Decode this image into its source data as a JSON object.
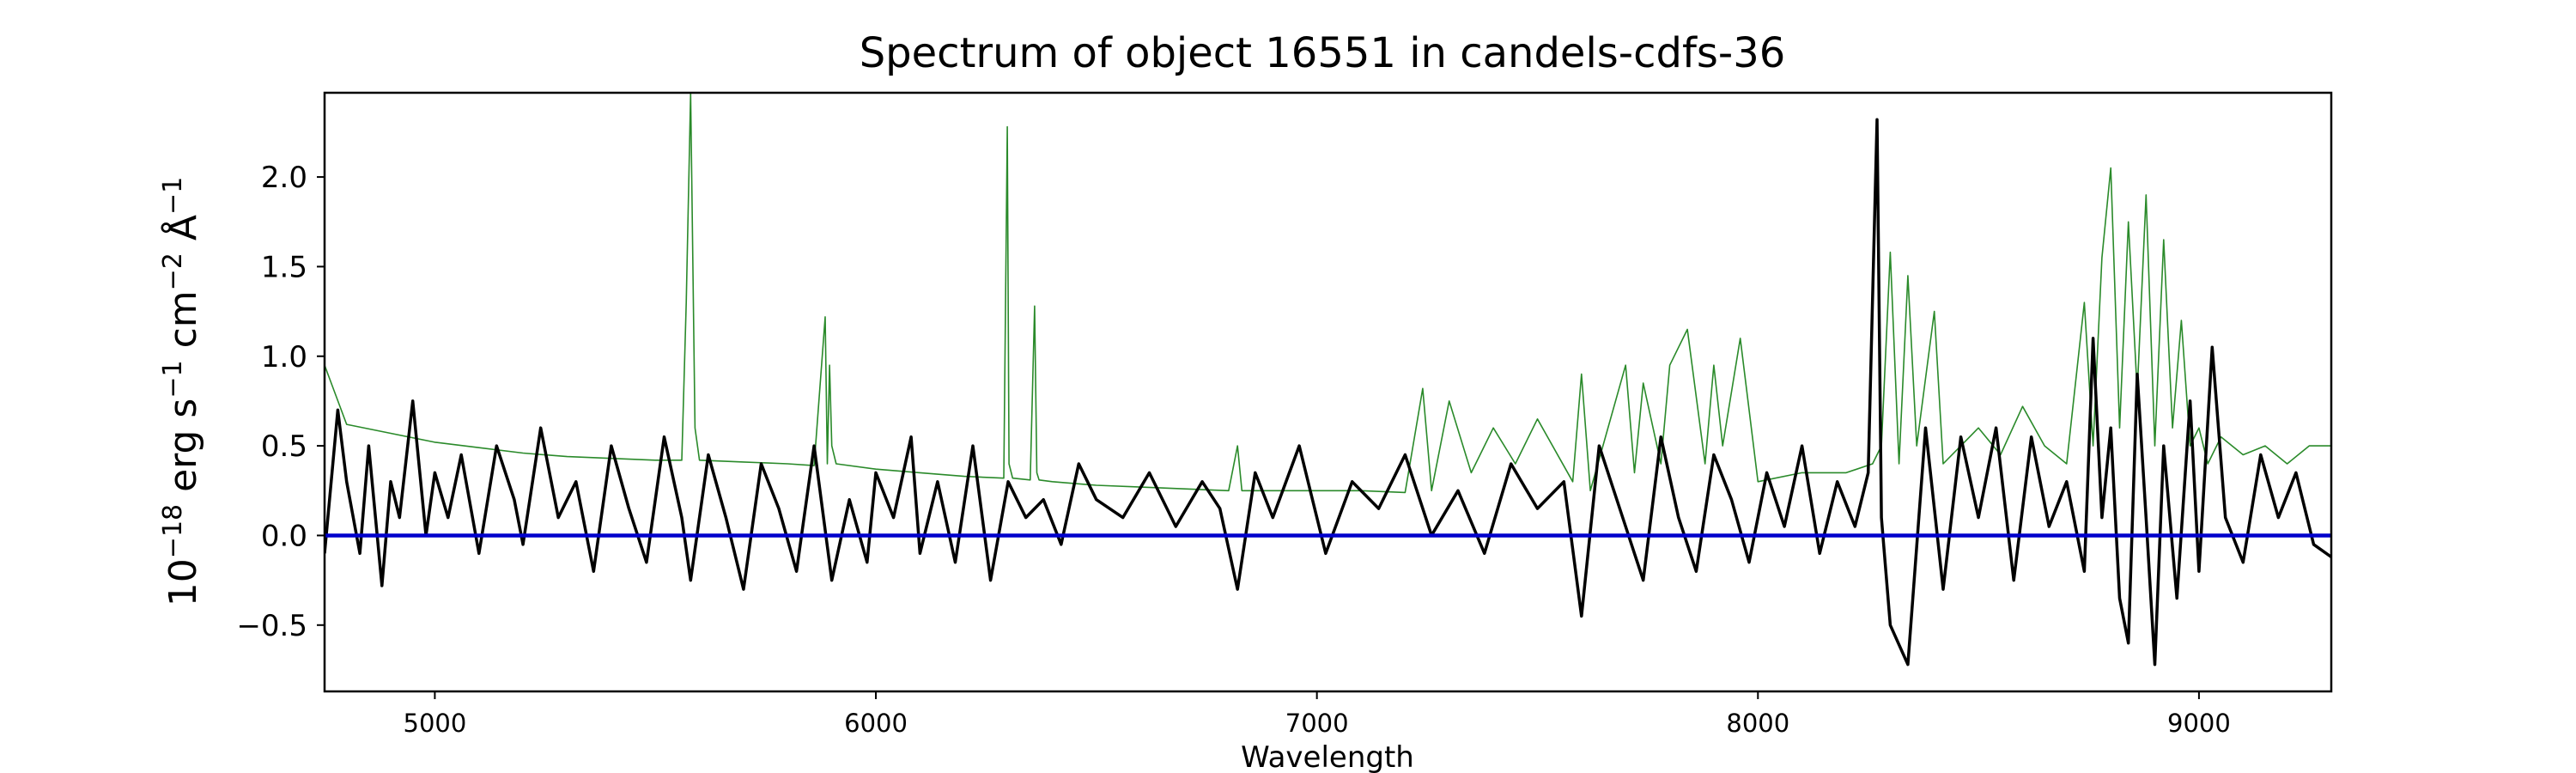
{
  "chart_data": {
    "type": "line",
    "title": "Spectrum of object 16551 in candels-cdfs-36",
    "xlabel": "Wavelength",
    "ylabel_parts": [
      "10",
      "−18",
      " erg s",
      "−1",
      " cm",
      "−2",
      " Å",
      "−1"
    ],
    "xlim": [
      4750,
      9300
    ],
    "ylim": [
      -0.87,
      2.47
    ],
    "xticks": [
      5000,
      6000,
      7000,
      8000,
      9000
    ],
    "xtick_labels": [
      "5000",
      "6000",
      "7000",
      "8000",
      "9000"
    ],
    "yticks": [
      -0.5,
      0.0,
      0.5,
      1.0,
      1.5,
      2.0
    ],
    "ytick_labels": [
      "−0.5",
      "0.0",
      "0.5",
      "1.0",
      "1.5",
      "2.0"
    ],
    "grid": false,
    "legend": "none",
    "colors": {
      "flux": "#000000",
      "error": "#2a8a2a",
      "zero": "#0000cc"
    },
    "series": [
      {
        "key": "flux",
        "x": [
          4750,
          4780,
          4800,
          4830,
          4850,
          4880,
          4900,
          4920,
          4950,
          4980,
          5000,
          5030,
          5060,
          5100,
          5140,
          5180,
          5200,
          5240,
          5280,
          5320,
          5360,
          5400,
          5440,
          5480,
          5520,
          5560,
          5580,
          5620,
          5660,
          5700,
          5740,
          5780,
          5820,
          5860,
          5900,
          5940,
          5980,
          6000,
          6040,
          6080,
          6100,
          6140,
          6180,
          6220,
          6260,
          6300,
          6340,
          6380,
          6420,
          6460,
          6500,
          6560,
          6620,
          6680,
          6740,
          6780,
          6820,
          6860,
          6900,
          6960,
          7020,
          7080,
          7140,
          7200,
          7260,
          7320,
          7380,
          7440,
          7500,
          7560,
          7600,
          7640,
          7700,
          7740,
          7780,
          7820,
          7860,
          7900,
          7940,
          7980,
          8020,
          8060,
          8100,
          8140,
          8180,
          8220,
          8250,
          8270,
          8280,
          8300,
          8340,
          8380,
          8420,
          8460,
          8500,
          8540,
          8580,
          8620,
          8660,
          8700,
          8740,
          8760,
          8780,
          8800,
          8820,
          8840,
          8860,
          8880,
          8900,
          8920,
          8950,
          8980,
          9000,
          9030,
          9060,
          9100,
          9140,
          9180,
          9220,
          9260,
          9300
        ],
        "y": [
          -0.1,
          0.7,
          0.3,
          -0.1,
          0.5,
          -0.28,
          0.3,
          0.1,
          0.75,
          0.0,
          0.35,
          0.1,
          0.45,
          -0.1,
          0.5,
          0.2,
          -0.05,
          0.6,
          0.1,
          0.3,
          -0.2,
          0.5,
          0.15,
          -0.15,
          0.55,
          0.1,
          -0.25,
          0.45,
          0.1,
          -0.3,
          0.4,
          0.15,
          -0.2,
          0.5,
          -0.25,
          0.2,
          -0.15,
          0.35,
          0.1,
          0.55,
          -0.1,
          0.3,
          -0.15,
          0.5,
          -0.25,
          0.3,
          0.1,
          0.2,
          -0.05,
          0.4,
          0.2,
          0.1,
          0.35,
          0.05,
          0.3,
          0.15,
          -0.3,
          0.35,
          0.1,
          0.5,
          -0.1,
          0.3,
          0.15,
          0.45,
          0.0,
          0.25,
          -0.1,
          0.4,
          0.15,
          0.3,
          -0.45,
          0.5,
          0.05,
          -0.25,
          0.55,
          0.1,
          -0.2,
          0.45,
          0.2,
          -0.15,
          0.35,
          0.05,
          0.5,
          -0.1,
          0.3,
          0.05,
          0.35,
          2.32,
          0.1,
          -0.5,
          -0.72,
          0.6,
          -0.3,
          0.55,
          0.1,
          0.6,
          -0.25,
          0.55,
          0.05,
          0.3,
          -0.2,
          1.1,
          0.1,
          0.6,
          -0.35,
          -0.6,
          0.9,
          0.1,
          -0.72,
          0.5,
          -0.35,
          0.75,
          -0.2,
          1.05,
          0.1,
          -0.15,
          0.45,
          0.1,
          0.35,
          -0.05,
          -0.12
        ]
      },
      {
        "key": "error",
        "x": [
          4750,
          4800,
          4900,
          5000,
          5100,
          5200,
          5300,
          5400,
          5500,
          5560,
          5570,
          5580,
          5590,
          5600,
          5700,
          5800,
          5860,
          5885,
          5890,
          5895,
          5900,
          5910,
          6000,
          6100,
          6200,
          6290,
          6298,
          6302,
          6310,
          6350,
          6360,
          6365,
          6370,
          6400,
          6500,
          6600,
          6700,
          6800,
          6820,
          6830,
          6840,
          6900,
          7000,
          7100,
          7200,
          7240,
          7260,
          7300,
          7350,
          7400,
          7450,
          7500,
          7580,
          7600,
          7620,
          7700,
          7720,
          7740,
          7780,
          7800,
          7840,
          7880,
          7900,
          7920,
          7960,
          8000,
          8100,
          8200,
          8260,
          8280,
          8300,
          8320,
          8340,
          8360,
          8400,
          8420,
          8460,
          8500,
          8550,
          8600,
          8650,
          8700,
          8740,
          8760,
          8780,
          8800,
          8820,
          8840,
          8860,
          8880,
          8900,
          8920,
          8940,
          8960,
          8980,
          9000,
          9020,
          9050,
          9100,
          9150,
          9200,
          9250,
          9300
        ],
        "y": [
          0.95,
          0.62,
          0.57,
          0.52,
          0.49,
          0.46,
          0.44,
          0.43,
          0.42,
          0.42,
          1.3,
          2.47,
          0.6,
          0.42,
          0.41,
          0.4,
          0.39,
          1.22,
          0.4,
          0.95,
          0.5,
          0.4,
          0.37,
          0.35,
          0.33,
          0.32,
          2.28,
          0.4,
          0.32,
          0.31,
          1.28,
          0.35,
          0.31,
          0.3,
          0.28,
          0.27,
          0.26,
          0.25,
          0.5,
          0.25,
          0.25,
          0.25,
          0.25,
          0.25,
          0.24,
          0.82,
          0.25,
          0.75,
          0.35,
          0.6,
          0.4,
          0.65,
          0.3,
          0.9,
          0.25,
          0.95,
          0.35,
          0.85,
          0.4,
          0.95,
          1.15,
          0.4,
          0.95,
          0.5,
          1.1,
          0.3,
          0.35,
          0.35,
          0.4,
          0.5,
          1.58,
          0.4,
          1.45,
          0.5,
          1.25,
          0.4,
          0.5,
          0.6,
          0.45,
          0.72,
          0.5,
          0.4,
          1.3,
          0.5,
          1.55,
          2.05,
          0.6,
          1.75,
          0.8,
          1.9,
          0.5,
          1.65,
          0.6,
          1.2,
          0.5,
          0.6,
          0.4,
          0.55,
          0.45,
          0.5,
          0.4,
          0.5,
          0.5
        ]
      }
    ],
    "reference_line_y": 0.0
  }
}
